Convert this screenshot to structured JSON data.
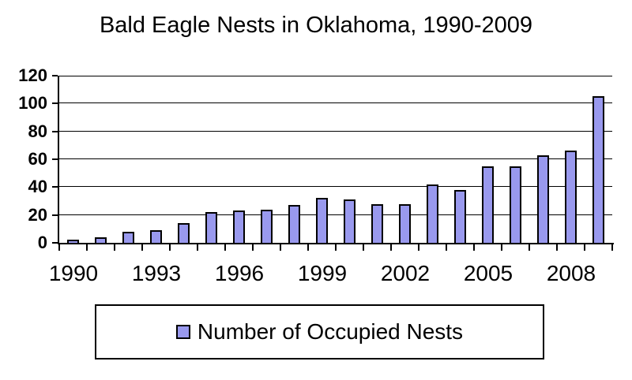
{
  "chart_data": {
    "type": "bar",
    "title": "Bald Eagle Nests in Oklahoma, 1990-2009",
    "categories": [
      "1990",
      "1991",
      "1992",
      "1993",
      "1994",
      "1995",
      "1996",
      "1997",
      "1998",
      "1999",
      "2000",
      "2001",
      "2002",
      "2003",
      "2004",
      "2005",
      "2006",
      "2007",
      "2008",
      "2009"
    ],
    "values": [
      2,
      4,
      8,
      9,
      14,
      22,
      23,
      24,
      27,
      32,
      31,
      28,
      28,
      42,
      38,
      55,
      55,
      63,
      66,
      105
    ],
    "xlabel": "",
    "ylabel": "",
    "ylim": [
      0,
      120
    ],
    "y_ticks": [
      0,
      20,
      40,
      60,
      80,
      100,
      120
    ],
    "x_tick_labels_shown": [
      "1990",
      "1993",
      "1996",
      "1999",
      "2002",
      "2005",
      "2008"
    ],
    "x_label_interval": 3,
    "grid": true,
    "legend": {
      "label": "Number of Occupied Nests",
      "position": "bottom"
    },
    "colors": {
      "bar_fill": "#9999EE",
      "bar_border": "#000000",
      "axis": "#000000",
      "gridline": "#000000",
      "background": "#FFFFFF",
      "text": "#000000"
    }
  }
}
